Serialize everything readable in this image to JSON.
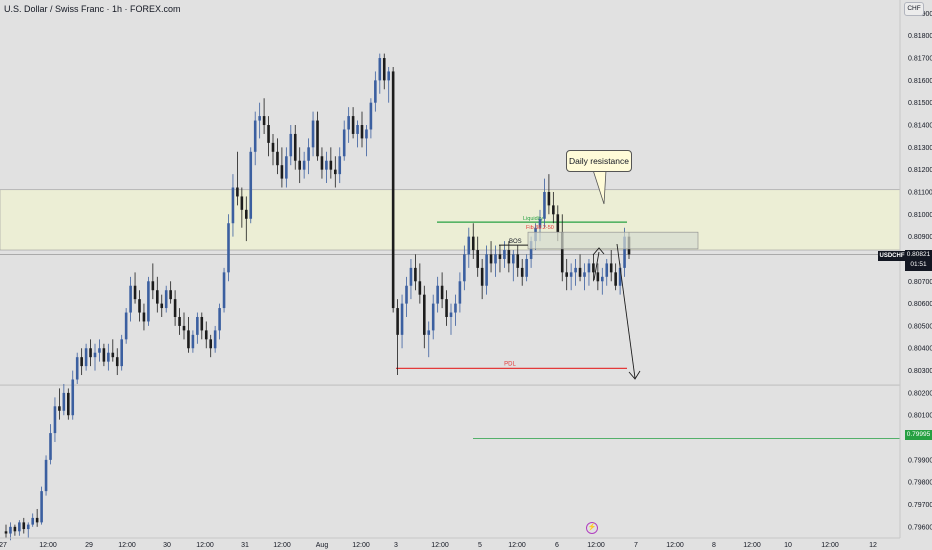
{
  "header": {
    "title": "U.S. Dollar / Swiss Franc · 1h · FOREX.com",
    "currency": "CHF"
  },
  "price_axis": {
    "ticks": [
      "0.81900",
      "0.81800",
      "0.81700",
      "0.81600",
      "0.81500",
      "0.81400",
      "0.81300",
      "0.81200",
      "0.81100",
      "0.81000",
      "0.80900",
      "0.80800",
      "0.80700",
      "0.80600",
      "0.80500",
      "0.80400",
      "0.80300",
      "0.80200",
      "0.80100",
      "0.80000",
      "0.79900",
      "0.79800",
      "0.79700",
      "0.79600"
    ],
    "symbol": "USDCHF",
    "current_price": "0.80821",
    "countdown": "01:51",
    "level_label": "0.79995"
  },
  "time_axis": {
    "ticks": [
      "27",
      "12:00",
      "29",
      "12:00",
      "30",
      "12:00",
      "31",
      "12:00",
      "Aug",
      "12:00",
      "3",
      "12:00",
      "5",
      "12:00",
      "6",
      "12:00",
      "7",
      "12:00",
      "8",
      "12:00",
      "10",
      "12:00",
      "12"
    ]
  },
  "annotations": {
    "callout": "Daily resistance",
    "bos": "BOS",
    "liquidity": "Liquidity",
    "fib": "Fib 38.2-50",
    "pdl": "PDL"
  },
  "colors": {
    "bull": "#3b5fa0",
    "bear": "#1c1c1c",
    "zone": "#eceed5",
    "green": "#26a042",
    "red": "#e33a3a"
  },
  "chart_data": {
    "type": "candlestick",
    "symbol": "USDCHF",
    "timeframe": "1h",
    "ylim": [
      0.7955,
      0.8196
    ],
    "zones": [
      {
        "label": "Daily resistance",
        "from": 0.8084,
        "to": 0.8111
      }
    ],
    "levels": [
      {
        "label": "PDL",
        "value": 0.8031
      },
      {
        "label": "Liquidity",
        "value": 0.80965
      },
      {
        "label": "0.79995",
        "value": 0.79995
      }
    ],
    "candles": [
      [
        0.7958,
        0.7961,
        0.7955,
        0.7957
      ],
      [
        0.7957,
        0.7962,
        0.7954,
        0.796
      ],
      [
        0.796,
        0.7961,
        0.7956,
        0.7958
      ],
      [
        0.7958,
        0.7963,
        0.7956,
        0.7962
      ],
      [
        0.7962,
        0.7964,
        0.7957,
        0.7959
      ],
      [
        0.7959,
        0.7962,
        0.7955,
        0.7961
      ],
      [
        0.7961,
        0.7966,
        0.796,
        0.7964
      ],
      [
        0.7964,
        0.7968,
        0.796,
        0.7962
      ],
      [
        0.7962,
        0.7978,
        0.7961,
        0.7976
      ],
      [
        0.7976,
        0.7992,
        0.7974,
        0.799
      ],
      [
        0.799,
        0.8006,
        0.7988,
        0.8002
      ],
      [
        0.8002,
        0.8018,
        0.7998,
        0.8014
      ],
      [
        0.8014,
        0.8022,
        0.8008,
        0.8012
      ],
      [
        0.8012,
        0.8024,
        0.801,
        0.802
      ],
      [
        0.802,
        0.8022,
        0.8008,
        0.801
      ],
      [
        0.801,
        0.803,
        0.8008,
        0.8026
      ],
      [
        0.8026,
        0.8038,
        0.8024,
        0.8036
      ],
      [
        0.8036,
        0.804,
        0.8028,
        0.8032
      ],
      [
        0.8032,
        0.8042,
        0.803,
        0.804
      ],
      [
        0.804,
        0.8044,
        0.8032,
        0.8036
      ],
      [
        0.8036,
        0.8042,
        0.803,
        0.8038
      ],
      [
        0.8038,
        0.8044,
        0.8034,
        0.804
      ],
      [
        0.804,
        0.8042,
        0.8032,
        0.8034
      ],
      [
        0.8034,
        0.8042,
        0.803,
        0.8038
      ],
      [
        0.8038,
        0.8044,
        0.8034,
        0.8036
      ],
      [
        0.8036,
        0.804,
        0.8028,
        0.8032
      ],
      [
        0.8032,
        0.8046,
        0.803,
        0.8044
      ],
      [
        0.8044,
        0.8058,
        0.8042,
        0.8056
      ],
      [
        0.8056,
        0.8072,
        0.8052,
        0.8068
      ],
      [
        0.8068,
        0.8074,
        0.806,
        0.8062
      ],
      [
        0.8062,
        0.8066,
        0.8052,
        0.8056
      ],
      [
        0.8056,
        0.806,
        0.8048,
        0.8052
      ],
      [
        0.8052,
        0.8072,
        0.805,
        0.807
      ],
      [
        0.807,
        0.8078,
        0.8062,
        0.8066
      ],
      [
        0.8066,
        0.8072,
        0.8056,
        0.806
      ],
      [
        0.806,
        0.8064,
        0.8054,
        0.8058
      ],
      [
        0.8058,
        0.8068,
        0.8056,
        0.8066
      ],
      [
        0.8066,
        0.807,
        0.806,
        0.8062
      ],
      [
        0.8062,
        0.8066,
        0.805,
        0.8054
      ],
      [
        0.8054,
        0.8058,
        0.8046,
        0.805
      ],
      [
        0.805,
        0.8056,
        0.8044,
        0.8048
      ],
      [
        0.8048,
        0.8054,
        0.8038,
        0.804
      ],
      [
        0.804,
        0.8048,
        0.8038,
        0.8046
      ],
      [
        0.8046,
        0.8056,
        0.8042,
        0.8054
      ],
      [
        0.8054,
        0.8056,
        0.8044,
        0.8048
      ],
      [
        0.8048,
        0.8052,
        0.804,
        0.8044
      ],
      [
        0.8044,
        0.8046,
        0.8036,
        0.804
      ],
      [
        0.804,
        0.805,
        0.8038,
        0.8048
      ],
      [
        0.8048,
        0.806,
        0.8044,
        0.8058
      ],
      [
        0.8058,
        0.8076,
        0.8056,
        0.8074
      ],
      [
        0.8074,
        0.81,
        0.807,
        0.8096
      ],
      [
        0.8096,
        0.8118,
        0.809,
        0.8112
      ],
      [
        0.8112,
        0.8128,
        0.8104,
        0.8108
      ],
      [
        0.8108,
        0.8112,
        0.8094,
        0.8102
      ],
      [
        0.8102,
        0.8108,
        0.8088,
        0.8098
      ],
      [
        0.8098,
        0.813,
        0.8096,
        0.8128
      ],
      [
        0.8128,
        0.8146,
        0.8122,
        0.8142
      ],
      [
        0.8142,
        0.815,
        0.8134,
        0.8144
      ],
      [
        0.8144,
        0.8152,
        0.8136,
        0.814
      ],
      [
        0.814,
        0.8144,
        0.8126,
        0.8132
      ],
      [
        0.8132,
        0.8136,
        0.8122,
        0.8128
      ],
      [
        0.8128,
        0.8134,
        0.8118,
        0.8122
      ],
      [
        0.8122,
        0.813,
        0.8112,
        0.8116
      ],
      [
        0.8116,
        0.813,
        0.8112,
        0.8126
      ],
      [
        0.8126,
        0.814,
        0.8122,
        0.8136
      ],
      [
        0.8136,
        0.814,
        0.812,
        0.8124
      ],
      [
        0.8124,
        0.813,
        0.8114,
        0.812
      ],
      [
        0.812,
        0.8128,
        0.8116,
        0.8124
      ],
      [
        0.8124,
        0.8134,
        0.8118,
        0.813
      ],
      [
        0.813,
        0.8146,
        0.8126,
        0.8142
      ],
      [
        0.8142,
        0.8146,
        0.8124,
        0.8126
      ],
      [
        0.8126,
        0.813,
        0.8116,
        0.812
      ],
      [
        0.812,
        0.8128,
        0.8114,
        0.8124
      ],
      [
        0.8124,
        0.813,
        0.8116,
        0.812
      ],
      [
        0.812,
        0.8126,
        0.8112,
        0.8118
      ],
      [
        0.8118,
        0.813,
        0.8114,
        0.8126
      ],
      [
        0.8126,
        0.8142,
        0.8124,
        0.8138
      ],
      [
        0.8138,
        0.8148,
        0.8132,
        0.8144
      ],
      [
        0.8144,
        0.8148,
        0.8134,
        0.8136
      ],
      [
        0.8136,
        0.8142,
        0.813,
        0.814
      ],
      [
        0.814,
        0.8146,
        0.813,
        0.8134
      ],
      [
        0.8134,
        0.814,
        0.8126,
        0.8138
      ],
      [
        0.8138,
        0.8152,
        0.8134,
        0.815
      ],
      [
        0.815,
        0.8164,
        0.8146,
        0.816
      ],
      [
        0.816,
        0.8172,
        0.8154,
        0.817
      ],
      [
        0.817,
        0.8172,
        0.8156,
        0.816
      ],
      [
        0.816,
        0.8166,
        0.815,
        0.8164
      ],
      [
        0.8164,
        0.8166,
        0.8056,
        0.8058
      ],
      [
        0.8058,
        0.8062,
        0.8028,
        0.8046
      ],
      [
        0.8046,
        0.8064,
        0.804,
        0.806
      ],
      [
        0.806,
        0.8072,
        0.8054,
        0.8068
      ],
      [
        0.8068,
        0.808,
        0.8062,
        0.8076
      ],
      [
        0.8076,
        0.8082,
        0.8066,
        0.807
      ],
      [
        0.807,
        0.8078,
        0.806,
        0.8064
      ],
      [
        0.8064,
        0.8068,
        0.804,
        0.8046
      ],
      [
        0.8046,
        0.8052,
        0.8036,
        0.8048
      ],
      [
        0.8048,
        0.8064,
        0.8044,
        0.806
      ],
      [
        0.806,
        0.8072,
        0.8056,
        0.8068
      ],
      [
        0.8068,
        0.8074,
        0.8058,
        0.8062
      ],
      [
        0.8062,
        0.8066,
        0.805,
        0.8054
      ],
      [
        0.8054,
        0.806,
        0.8046,
        0.8056
      ],
      [
        0.8056,
        0.8064,
        0.805,
        0.806
      ],
      [
        0.806,
        0.8074,
        0.8056,
        0.807
      ],
      [
        0.807,
        0.8086,
        0.8066,
        0.8082
      ],
      [
        0.8082,
        0.8094,
        0.8076,
        0.809
      ],
      [
        0.809,
        0.8096,
        0.808,
        0.8084
      ],
      [
        0.8084,
        0.809,
        0.8072,
        0.8076
      ],
      [
        0.8076,
        0.808,
        0.8062,
        0.8068
      ],
      [
        0.8068,
        0.8086,
        0.8064,
        0.8082
      ],
      [
        0.8082,
        0.8088,
        0.8074,
        0.8078
      ],
      [
        0.8078,
        0.8086,
        0.8072,
        0.8082
      ],
      [
        0.8082,
        0.8086,
        0.8074,
        0.808
      ],
      [
        0.808,
        0.8088,
        0.8076,
        0.8084
      ],
      [
        0.8084,
        0.8088,
        0.8074,
        0.8078
      ],
      [
        0.8078,
        0.8084,
        0.807,
        0.8082
      ],
      [
        0.8082,
        0.8086,
        0.8072,
        0.8076
      ],
      [
        0.8076,
        0.808,
        0.8068,
        0.8072
      ],
      [
        0.8072,
        0.8082,
        0.807,
        0.808
      ],
      [
        0.808,
        0.809,
        0.8076,
        0.8088
      ],
      [
        0.8088,
        0.8096,
        0.8084,
        0.8094
      ],
      [
        0.8094,
        0.8102,
        0.8088,
        0.8098
      ],
      [
        0.8098,
        0.8116,
        0.8094,
        0.811
      ],
      [
        0.811,
        0.8118,
        0.81,
        0.8104
      ],
      [
        0.8104,
        0.811,
        0.8096,
        0.81
      ],
      [
        0.81,
        0.8104,
        0.8088,
        0.8092
      ],
      [
        0.8092,
        0.81,
        0.807,
        0.8074
      ],
      [
        0.8074,
        0.808,
        0.8066,
        0.8072
      ],
      [
        0.8072,
        0.8078,
        0.8066,
        0.8074
      ],
      [
        0.8074,
        0.808,
        0.8068,
        0.8076
      ],
      [
        0.8076,
        0.8082,
        0.807,
        0.8072
      ],
      [
        0.8072,
        0.8078,
        0.8066,
        0.8074
      ],
      [
        0.8074,
        0.808,
        0.8068,
        0.8078
      ],
      [
        0.8078,
        0.8082,
        0.807,
        0.8074
      ],
      [
        0.8074,
        0.8078,
        0.8066,
        0.807
      ],
      [
        0.807,
        0.8076,
        0.8064,
        0.8072
      ],
      [
        0.8072,
        0.808,
        0.8068,
        0.8078
      ],
      [
        0.8078,
        0.8084,
        0.807,
        0.8074
      ],
      [
        0.8074,
        0.8078,
        0.8066,
        0.8068
      ],
      [
        0.8068,
        0.8078,
        0.8064,
        0.8076
      ],
      [
        0.8076,
        0.8094,
        0.8072,
        0.809
      ],
      [
        0.809,
        0.8092,
        0.808,
        0.8082
      ]
    ]
  }
}
